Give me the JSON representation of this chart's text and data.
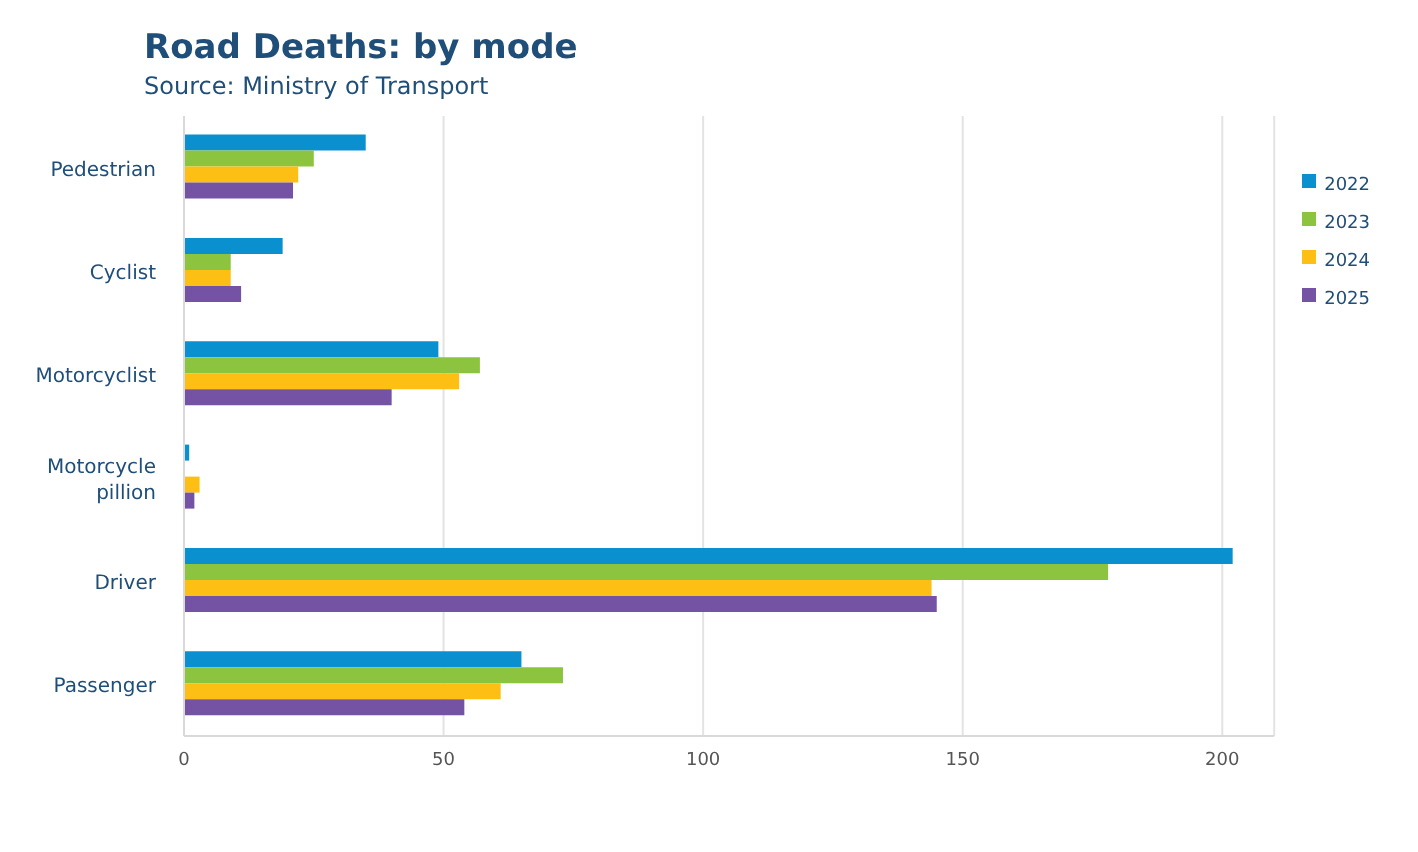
{
  "chart_data": {
    "type": "bar",
    "orientation": "horizontal",
    "title": "Road Deaths: by mode",
    "subtitle": "Source: Ministry of Transport",
    "categories": [
      "Pedestrian",
      "Cyclist",
      "Motorcyclist",
      "Motorcycle pillion",
      "Driver",
      "Passenger"
    ],
    "series": [
      {
        "name": "2022",
        "color": "#0a8fcf",
        "values": [
          35,
          19,
          49,
          1,
          202,
          65
        ]
      },
      {
        "name": "2023",
        "color": "#8cc43f",
        "values": [
          25,
          9,
          57,
          0,
          178,
          73
        ]
      },
      {
        "name": "2024",
        "color": "#fdbf13",
        "values": [
          22,
          9,
          53,
          3,
          144,
          61
        ]
      },
      {
        "name": "2025",
        "color": "#7453a5",
        "values": [
          21,
          11,
          40,
          2,
          145,
          54
        ]
      }
    ],
    "xlim": [
      0,
      210
    ],
    "xticks": [
      0,
      50,
      100,
      150,
      200
    ],
    "grid": "x",
    "legend": "right"
  }
}
